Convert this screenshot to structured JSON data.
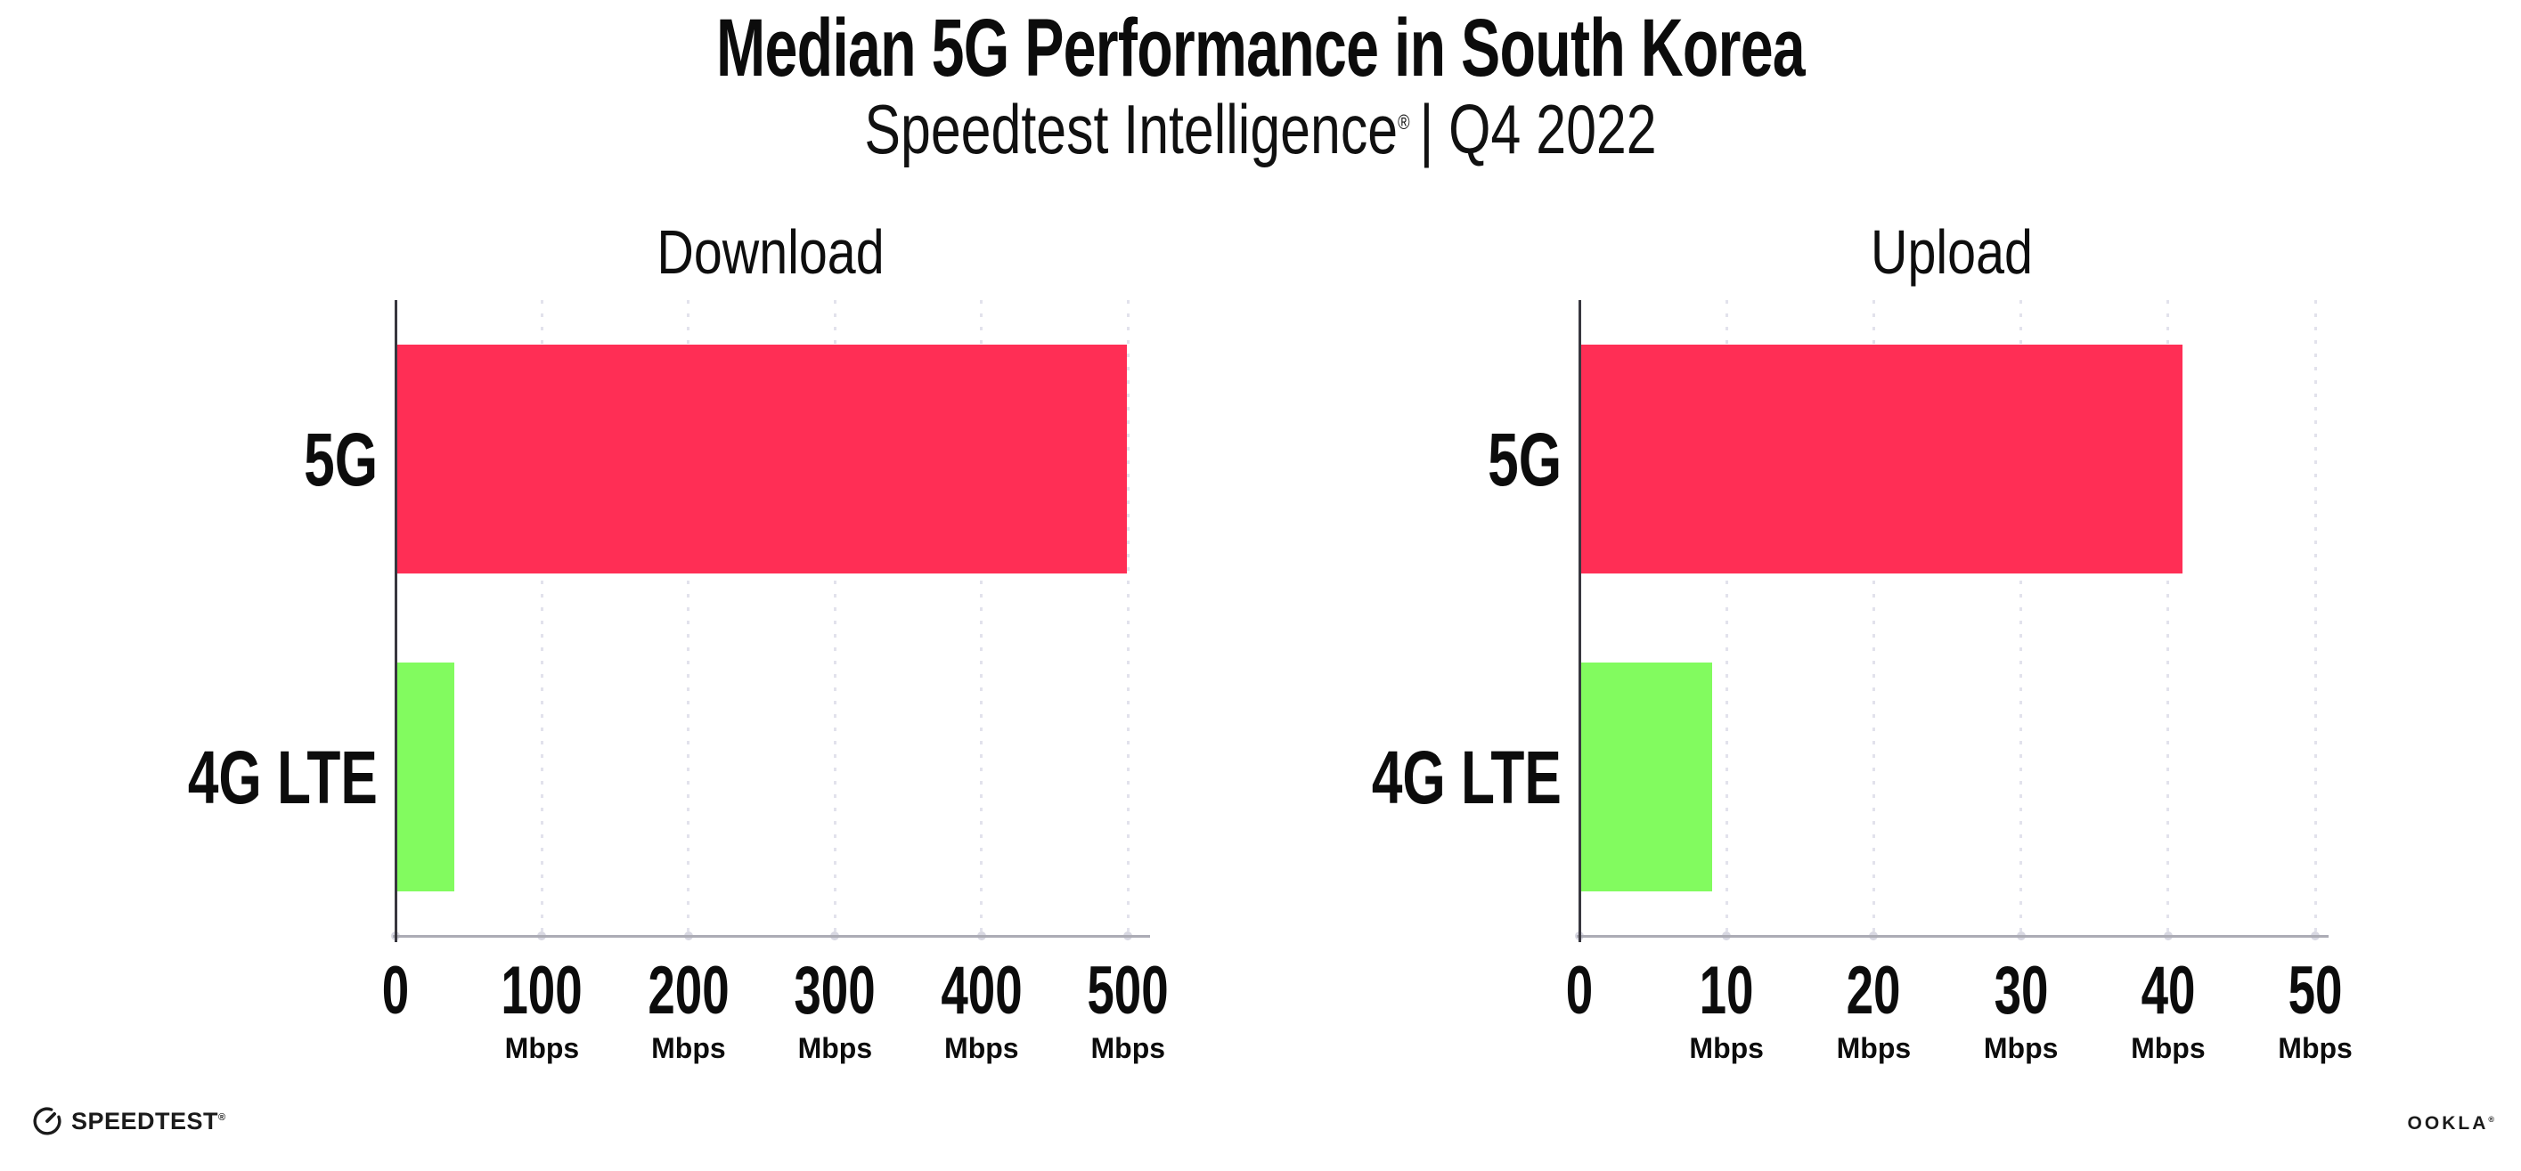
{
  "header": {
    "title": "Median 5G Performance in South Korea",
    "subtitle_brand": "Speedtest Intelligence",
    "subtitle_reg": "®",
    "subtitle_rest": "| Q4 2022"
  },
  "chart_data": [
    {
      "type": "bar",
      "orientation": "horizontal",
      "title": "Download",
      "categories": [
        "5G",
        "4G LTE"
      ],
      "values": [
        499,
        40
      ],
      "value_unit": "Mbps",
      "bar_colors": [
        "#FF2E55",
        "#82FB5F"
      ],
      "xlim": [
        0,
        512
      ],
      "xticks": [
        0,
        100,
        200,
        300,
        400,
        500
      ],
      "xtick_unit": "Mbps",
      "grid": "vertical-dotted",
      "legend": "none"
    },
    {
      "type": "bar",
      "orientation": "horizontal",
      "title": "Upload",
      "categories": [
        "5G",
        "4G LTE"
      ],
      "values": [
        41,
        9
      ],
      "value_unit": "Mbps",
      "bar_colors": [
        "#FF2E55",
        "#82FB5F"
      ],
      "xlim": [
        0,
        50.6
      ],
      "xticks": [
        0,
        10,
        20,
        30,
        40,
        50
      ],
      "xtick_unit": "Mbps",
      "grid": "vertical-dotted",
      "legend": "none"
    }
  ],
  "footer": {
    "speedtest_label": "SPEEDTEST",
    "speedtest_reg": "®",
    "ookla_label": "OOKLA",
    "ookla_reg": "®"
  },
  "colors": {
    "bar_5g": "#FF2E55",
    "bar_4g_lte": "#82FB5F",
    "gridline": "#E2E2EC",
    "axis_left": "#38373F",
    "axis_bottom": "#ACACB5",
    "tick_dot": "#D8D8E2",
    "text": "#0C0C0C"
  }
}
